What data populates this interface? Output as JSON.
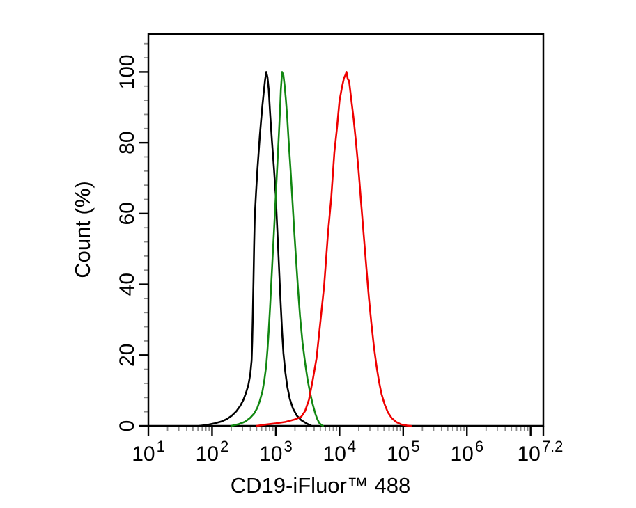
{
  "figure": {
    "background": "#ffffff"
  },
  "chart_data": {
    "type": "line",
    "subtype": "flow-cytometry-histogram-overlay",
    "title": "",
    "xlabel": "CD19-iFluor™ 488",
    "ylabel": "Count (%)",
    "grid": false,
    "legend": false,
    "x_axis": {
      "scale": "log10",
      "range_log10": [
        1,
        7.2
      ],
      "major_ticks_log10": [
        1,
        2,
        3,
        4,
        5,
        6,
        7,
        7.2
      ],
      "minor_ticks_per_decade": [
        2,
        3,
        4,
        5,
        6,
        7,
        8,
        9
      ],
      "tick_labels": [
        {
          "log10": 1,
          "base": "10",
          "exp": "1"
        },
        {
          "log10": 2,
          "base": "10",
          "exp": "2"
        },
        {
          "log10": 3,
          "base": "10",
          "exp": "3"
        },
        {
          "log10": 4,
          "base": "10",
          "exp": "4"
        },
        {
          "log10": 5,
          "base": "10",
          "exp": "5"
        },
        {
          "log10": 6,
          "base": "10",
          "exp": "6"
        },
        {
          "log10": 7.2,
          "base": "10",
          "exp": "7.2",
          "anchor_log10": 7.15
        }
      ]
    },
    "y_axis": {
      "range": [
        0,
        110.7
      ],
      "major_ticks": [
        0,
        20,
        40,
        60,
        80,
        100
      ],
      "major_tick_labels": [
        "0",
        "20",
        "40",
        "60",
        "80",
        "100"
      ],
      "minor_tick_step": 4,
      "label_rotation_deg": -90
    },
    "axis_color": "#000000",
    "minor_tick_color": "#8c8c8c",
    "series": [
      {
        "name": "black-curve",
        "color": "#000000",
        "peak_log10": 2.85,
        "peak_percent": 100,
        "points_log10_percent": [
          [
            1.8,
            0
          ],
          [
            1.93,
            0.3
          ],
          [
            2.04,
            0.7
          ],
          [
            2.14,
            1.2
          ],
          [
            2.23,
            1.9
          ],
          [
            2.31,
            2.9
          ],
          [
            2.38,
            4.1
          ],
          [
            2.44,
            5.6
          ],
          [
            2.49,
            7.3
          ],
          [
            2.53,
            9.2
          ],
          [
            2.57,
            11.6
          ],
          [
            2.6,
            14.6
          ],
          [
            2.62,
            18.5
          ],
          [
            2.63,
            24
          ],
          [
            2.64,
            32
          ],
          [
            2.65,
            41
          ],
          [
            2.66,
            51
          ],
          [
            2.67,
            59
          ],
          [
            2.69,
            66
          ],
          [
            2.71,
            72
          ],
          [
            2.73,
            77
          ],
          [
            2.75,
            82
          ],
          [
            2.77,
            86.5
          ],
          [
            2.79,
            90.5
          ],
          [
            2.81,
            94
          ],
          [
            2.83,
            97.5
          ],
          [
            2.85,
            100
          ],
          [
            2.87,
            98.5
          ],
          [
            2.89,
            95
          ],
          [
            2.91,
            88.5
          ],
          [
            2.94,
            80.5
          ],
          [
            2.97,
            73
          ],
          [
            3.0,
            65
          ],
          [
            3.02,
            57
          ],
          [
            3.04,
            49
          ],
          [
            3.06,
            41
          ],
          [
            3.08,
            33.5
          ],
          [
            3.1,
            26.5
          ],
          [
            3.12,
            20.5
          ],
          [
            3.15,
            15.2
          ],
          [
            3.18,
            11.1
          ],
          [
            3.22,
            7.6
          ],
          [
            3.27,
            4.9
          ],
          [
            3.33,
            2.9
          ],
          [
            3.4,
            1.6
          ],
          [
            3.48,
            0.7
          ],
          [
            3.56,
            0
          ]
        ]
      },
      {
        "name": "green-curve",
        "color": "#128712",
        "peak_log10": 3.1,
        "peak_percent": 100,
        "points_log10_percent": [
          [
            2.3,
            0
          ],
          [
            2.42,
            0.5
          ],
          [
            2.52,
            1.2
          ],
          [
            2.6,
            2.3
          ],
          [
            2.66,
            3.5
          ],
          [
            2.71,
            5.1
          ],
          [
            2.75,
            7.1
          ],
          [
            2.79,
            9.7
          ],
          [
            2.82,
            12.8
          ],
          [
            2.85,
            17
          ],
          [
            2.87,
            21.5
          ],
          [
            2.89,
            27
          ],
          [
            2.91,
            33.5
          ],
          [
            2.93,
            40.5
          ],
          [
            2.95,
            47.5
          ],
          [
            2.97,
            54.5
          ],
          [
            2.99,
            61.5
          ],
          [
            3.01,
            68.5
          ],
          [
            3.03,
            75.5
          ],
          [
            3.05,
            83
          ],
          [
            3.07,
            90.5
          ],
          [
            3.08,
            95
          ],
          [
            3.1,
            100
          ],
          [
            3.12,
            99
          ],
          [
            3.14,
            96
          ],
          [
            3.16,
            92
          ],
          [
            3.18,
            87
          ],
          [
            3.2,
            81
          ],
          [
            3.23,
            73
          ],
          [
            3.26,
            64
          ],
          [
            3.29,
            55
          ],
          [
            3.32,
            46.5
          ],
          [
            3.35,
            38.5
          ],
          [
            3.38,
            31
          ],
          [
            3.42,
            23.5
          ],
          [
            3.46,
            17.8
          ],
          [
            3.5,
            13
          ],
          [
            3.54,
            9.2
          ],
          [
            3.58,
            6.1
          ],
          [
            3.62,
            3.5
          ],
          [
            3.65,
            2.0
          ],
          [
            3.68,
            0.9
          ],
          [
            3.71,
            0.3
          ],
          [
            3.74,
            0
          ]
        ]
      },
      {
        "name": "red-curve",
        "color": "#ee0000",
        "peak_log10": 4.11,
        "peak_percent": 100,
        "points_log10_percent": [
          [
            2.7,
            0
          ],
          [
            2.85,
            0.4
          ],
          [
            3.0,
            0.7
          ],
          [
            3.15,
            1.1
          ],
          [
            3.3,
            1.8
          ],
          [
            3.4,
            2.6
          ],
          [
            3.46,
            4.2
          ],
          [
            3.52,
            7.4
          ],
          [
            3.58,
            12.9
          ],
          [
            3.64,
            19.1
          ],
          [
            3.7,
            29.4
          ],
          [
            3.76,
            39.8
          ],
          [
            3.82,
            54.6
          ],
          [
            3.87,
            64.4
          ],
          [
            3.92,
            77.3
          ],
          [
            3.96,
            84.1
          ],
          [
            4.0,
            91.9
          ],
          [
            4.04,
            95.8
          ],
          [
            4.07,
            98.3
          ],
          [
            4.09,
            99
          ],
          [
            4.11,
            100
          ],
          [
            4.13,
            98
          ],
          [
            4.15,
            97.5
          ],
          [
            4.18,
            93
          ],
          [
            4.22,
            87
          ],
          [
            4.26,
            80
          ],
          [
            4.3,
            72
          ],
          [
            4.34,
            63
          ],
          [
            4.38,
            54
          ],
          [
            4.42,
            45
          ],
          [
            4.46,
            36.5
          ],
          [
            4.5,
            29
          ],
          [
            4.54,
            22.5
          ],
          [
            4.58,
            17
          ],
          [
            4.62,
            12.5
          ],
          [
            4.66,
            9
          ],
          [
            4.71,
            6
          ],
          [
            4.76,
            3.8
          ],
          [
            4.82,
            2.2
          ],
          [
            4.89,
            1.1
          ],
          [
            4.97,
            0.4
          ],
          [
            5.06,
            0.1
          ],
          [
            5.12,
            0
          ]
        ]
      }
    ]
  }
}
